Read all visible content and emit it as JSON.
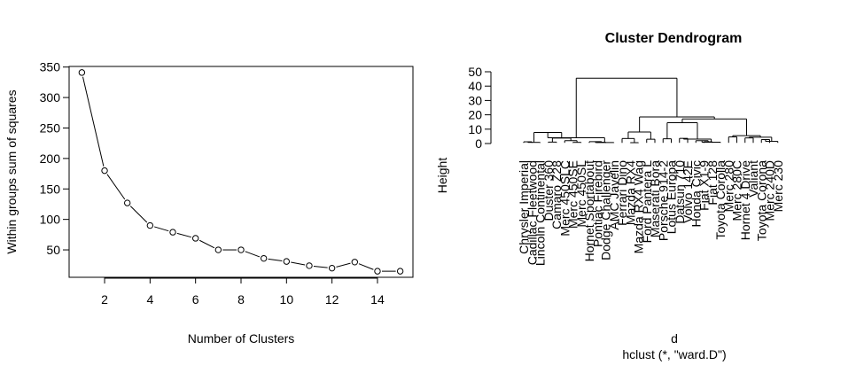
{
  "chart_data": [
    {
      "type": "line",
      "title": "",
      "xlabel": "Number of Clusters",
      "ylabel": "Within groups sum of squares",
      "x": [
        1,
        2,
        3,
        4,
        5,
        6,
        7,
        8,
        9,
        10,
        11,
        12,
        13,
        14,
        15
      ],
      "y": [
        341,
        180,
        127,
        90,
        79,
        69,
        50,
        50,
        36,
        31,
        24,
        20,
        30,
        15,
        15
      ],
      "xlim": [
        0.44,
        15.56
      ],
      "ylim": [
        5,
        351
      ],
      "xticks": [
        2,
        4,
        6,
        8,
        10,
        12,
        14
      ],
      "yticks": [
        50,
        100,
        150,
        200,
        250,
        300,
        350
      ],
      "marker": "open-circle",
      "grid": false
    },
    {
      "type": "dendrogram",
      "title": "Cluster Dendrogram",
      "xlabel": "d",
      "subtitle": "hclust (*, \"ward.D\")",
      "ylabel": "Height",
      "yticks": [
        0,
        10,
        20,
        30,
        40,
        50
      ],
      "ylim": [
        0,
        50
      ],
      "leaves": [
        "Chrysler Imperial",
        "Cadillac Fleetwood",
        "Lincoln Continental",
        "Duster 360",
        "Camaro Z28",
        "Merc 450SLC",
        "Merc 450SE",
        "Merc 450SL",
        "Hornet Sportabout",
        "Pontiac Firebird",
        "Dodge Challenger",
        "AMC Javelin",
        "Ferrari Dino",
        "Mazda RX4",
        "Mazda RX4 Wag",
        "Ford Pantera L",
        "Maserati Bora",
        "Porsche 914-2",
        "Lotus Europa",
        "Datsun 710",
        "Volvo 142E",
        "Honda Civic",
        "Fiat X1-9",
        "Fiat 128",
        "Toyota Corolla",
        "Merc 280",
        "Merc 280C",
        "Hornet 4 Drive",
        "Valiant",
        "Toyota Corona",
        "Merc 240D",
        "Merc 230"
      ],
      "merges": [
        {
          "a": 0,
          "b": 1,
          "h": 1.2
        },
        {
          "a": "L:0",
          "b": 2,
          "h": 0.8
        },
        {
          "a": 3,
          "b": 4,
          "h": 1.0
        },
        {
          "a": 6,
          "b": 7,
          "h": 0.8
        },
        {
          "a": 5,
          "b": "L:3",
          "h": 2.0
        },
        {
          "a": "L:2",
          "b": "L:4",
          "h": 3.8
        },
        {
          "a": "L:1",
          "b": "L:5",
          "h": 7.7
        },
        {
          "a": 9,
          "b": 10,
          "h": 0.9
        },
        {
          "a": 8,
          "b": "L:7",
          "h": 1.3
        },
        {
          "a": "L:8",
          "b": 11,
          "h": 0.7
        },
        {
          "a": "L:6",
          "b": "L:9",
          "h": 4.0
        },
        {
          "a": 13,
          "b": 14,
          "h": 0.6
        },
        {
          "a": 12,
          "b": "L:11",
          "h": 3.5
        },
        {
          "a": 15,
          "b": 16,
          "h": 3.0
        },
        {
          "a": "L:12",
          "b": "L:13",
          "h": 8.0
        },
        {
          "a": 17,
          "b": 18,
          "h": 3.3
        },
        {
          "a": 19,
          "b": 20,
          "h": 3.6
        },
        {
          "a": 22,
          "b": 23,
          "h": 1.2
        },
        {
          "a": 21,
          "b": "L:17",
          "h": 2.0
        },
        {
          "a": "L:18",
          "b": 24,
          "h": 0.9
        },
        {
          "a": "L:16",
          "b": "L:19",
          "h": 3.1
        },
        {
          "a": "L:15",
          "b": "L:20",
          "h": 14.5
        },
        {
          "a": 25,
          "b": 26,
          "h": 4.6
        },
        {
          "a": 27,
          "b": 28,
          "h": 3.9
        },
        {
          "a": 29,
          "b": 30,
          "h": 2.8
        },
        {
          "a": "L:24",
          "b": 31,
          "h": 1.5
        },
        {
          "a": "L:23",
          "b": "L:25",
          "h": 4.4
        },
        {
          "a": "L:22",
          "b": "L:26",
          "h": 5.5
        },
        {
          "a": "L:21",
          "b": "L:27",
          "h": 17.1
        },
        {
          "a": "L:14",
          "b": "L:28",
          "h": 18.5
        },
        {
          "a": "L:10",
          "b": "L:29",
          "h": 45.5
        }
      ]
    }
  ]
}
